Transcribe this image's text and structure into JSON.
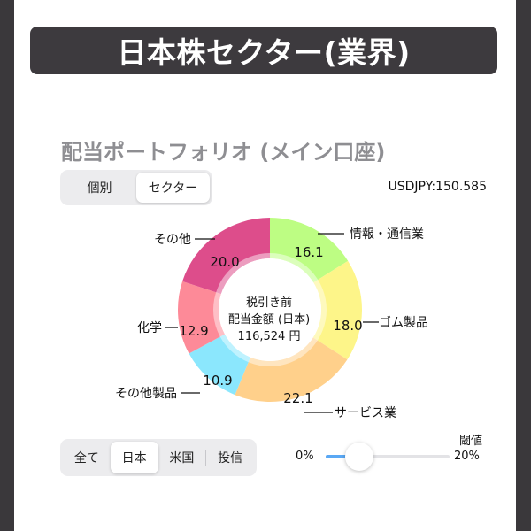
{
  "banner": {
    "title": "日本株セクター(業界)"
  },
  "portfolio": {
    "title": "配当ポートフォリオ (メイン口座)"
  },
  "view_toggle": {
    "items": [
      "個別",
      "セクター"
    ],
    "selected": "セクター"
  },
  "fx_rate": "USDJPY:150.585",
  "center": {
    "line1": "税引き前",
    "line2": "配当金額 (日本)",
    "line3": "116,524 円"
  },
  "chart_data": {
    "type": "pie",
    "unit": "%",
    "slices": [
      {
        "label": "情報・通信業",
        "value": 16.1,
        "color": "#bdfd83"
      },
      {
        "label": "ゴム製品",
        "value": 18.0,
        "color": "#fdf589"
      },
      {
        "label": "サービス業",
        "value": 22.1,
        "color": "#ffd08b"
      },
      {
        "label": "その他製品",
        "value": 10.9,
        "color": "#8be7fd"
      },
      {
        "label": "化学",
        "value": 12.9,
        "color": "#fd8a98"
      },
      {
        "label": "その他",
        "value": 20.0,
        "color": "#dd4d8b"
      }
    ]
  },
  "market_filter": {
    "items": [
      "全て",
      "日本",
      "米国",
      "投信"
    ],
    "selected": "日本"
  },
  "threshold": {
    "label": "閾値",
    "min_label": "0%",
    "max_label": "20%",
    "value_fraction": 0.27
  }
}
